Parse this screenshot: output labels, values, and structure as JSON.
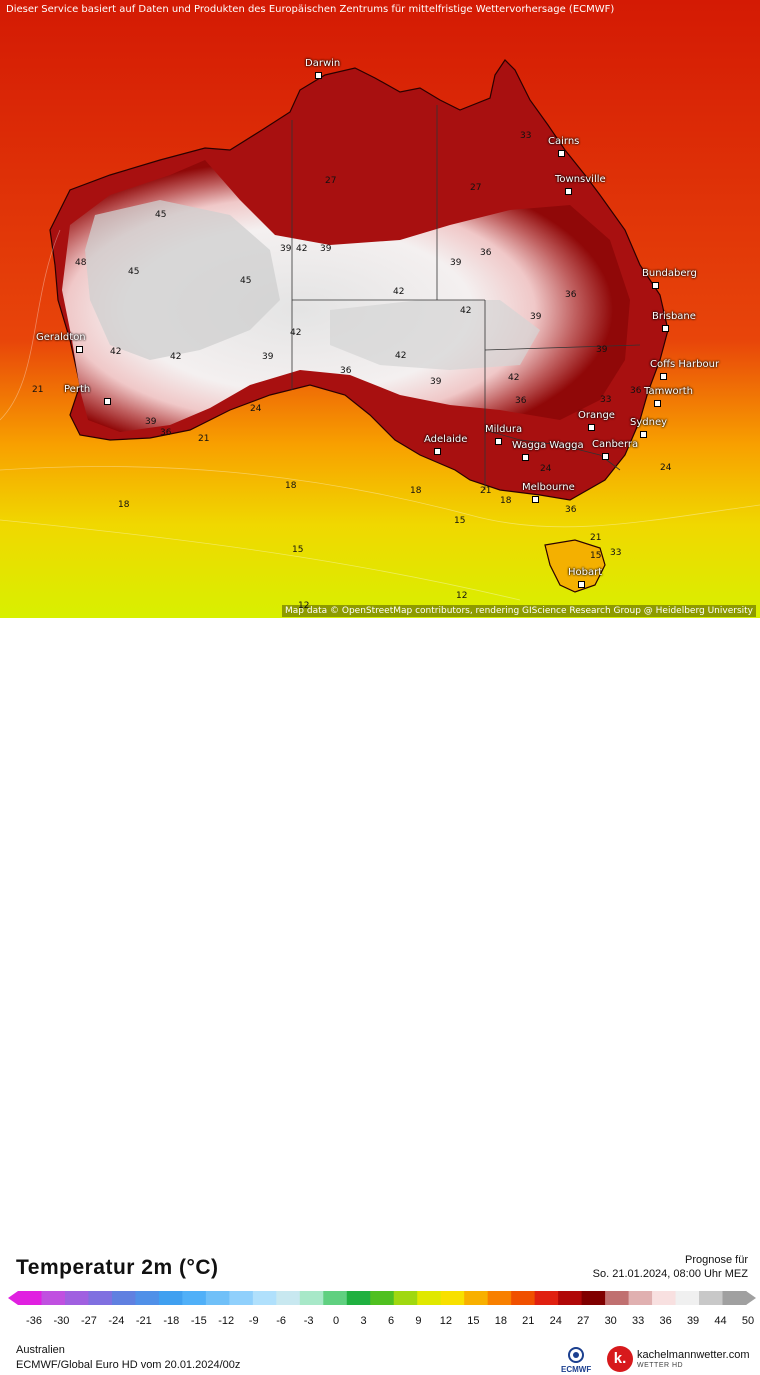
{
  "map": {
    "notice": "Dieser Service basiert auf Daten und Produkten des Europäischen Zentrums für mittelfristige Wettervorhersage (ECMWF)",
    "attribution": "Map data © OpenStreetMap contributors, rendering GIScience Research Group @ Heidelberg University",
    "cities": [
      {
        "name": "Darwin"
      },
      {
        "name": "Cairns"
      },
      {
        "name": "Townsville"
      },
      {
        "name": "Bundaberg"
      },
      {
        "name": "Brisbane"
      },
      {
        "name": "Coffs Harbour"
      },
      {
        "name": "Tamworth"
      },
      {
        "name": "Sydney"
      },
      {
        "name": "Canberra"
      },
      {
        "name": "Orange"
      },
      {
        "name": "Wagga Wagga"
      },
      {
        "name": "Mildura"
      },
      {
        "name": "Adelaide"
      },
      {
        "name": "Melbourne"
      },
      {
        "name": "Hobart"
      },
      {
        "name": "Geraldton"
      },
      {
        "name": "Perth"
      }
    ],
    "contour_values": [
      "45",
      "45",
      "45",
      "48",
      "42",
      "39",
      "42",
      "42",
      "42",
      "39",
      "36",
      "39",
      "42",
      "42",
      "39",
      "36",
      "39",
      "42",
      "36",
      "33",
      "36",
      "39",
      "36",
      "39",
      "42",
      "39",
      "36",
      "33",
      "27",
      "27",
      "24",
      "24",
      "21",
      "21",
      "21",
      "18",
      "18",
      "18",
      "15",
      "15",
      "15",
      "12",
      "12",
      "24",
      "36",
      "33",
      "21",
      "18"
    ]
  },
  "legend": {
    "title": "Temperatur 2m (°C)",
    "forecast_label": "Prognose für",
    "forecast_date": "So. 21.01.2024, 08:00 Uhr MEZ",
    "scale_ticks": [
      "-36",
      "-30",
      "-27",
      "-24",
      "-21",
      "-18",
      "-15",
      "-12",
      "-9",
      "-6",
      "-3",
      "0",
      "3",
      "6",
      "9",
      "12",
      "15",
      "18",
      "21",
      "24",
      "27",
      "30",
      "33",
      "36",
      "39",
      "44",
      "50"
    ],
    "scale_colors": [
      "#e020e0",
      "#c050e0",
      "#a060e0",
      "#8070e0",
      "#6080e0",
      "#5090e8",
      "#40a0f0",
      "#50b0f8",
      "#70c0f8",
      "#90d0fc",
      "#b0e0fc",
      "#c8e8f0",
      "#a8e8c8",
      "#60d080",
      "#20b040",
      "#50c020",
      "#a0d810",
      "#e0e800",
      "#f8e000",
      "#f8b000",
      "#f88000",
      "#f05000",
      "#e02010",
      "#b00808",
      "#800000",
      "#c07070",
      "#e0b0b0",
      "#f8e0e0",
      "#f0f0f0",
      "#c8c8c8",
      "#a0a0a0"
    ],
    "region": "Australien",
    "model": "ECMWF/Global Euro HD vom  20.01.2024/00z",
    "ecmwf_label": "ECMWF",
    "brand_name": "kachelmannwetter.com",
    "brand_sub": "WETTER HD",
    "brand_letter": "k."
  }
}
